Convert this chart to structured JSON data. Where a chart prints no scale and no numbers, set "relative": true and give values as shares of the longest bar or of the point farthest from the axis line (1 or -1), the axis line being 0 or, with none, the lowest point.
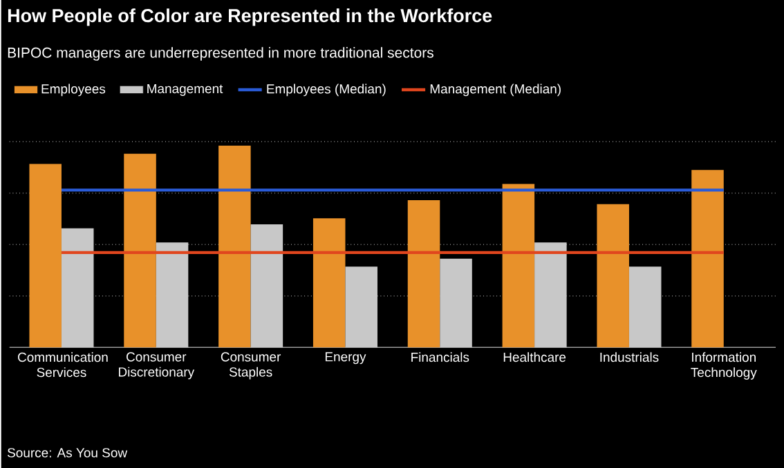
{
  "chart_data": {
    "type": "bar",
    "title": "How People of Color are Represented in the Workforce",
    "subtitle": "BIPOC managers are underrepresented in more traditional sectors",
    "categories": [
      "Communication Services",
      "Consumer Discretionary",
      "Consumer Staples",
      "Energy",
      "Financials",
      "Healthcare",
      "Industrials",
      "Information Technology"
    ],
    "relative": true,
    "grid": "y",
    "legend": "top left",
    "series": [
      {
        "name": "Employees",
        "color": "#e8912a",
        "values": [
          0.91,
          0.96,
          1,
          0.64,
          0.73,
          0.81,
          0.71,
          0.88
        ]
      },
      {
        "name": "Management",
        "color": "#c8c8c8",
        "values": [
          0.59,
          0.52,
          0.61,
          0.4,
          0.44,
          0.52,
          0.4,
          null
        ]
      },
      {
        "name": "Employees (Median)",
        "type": "line",
        "color": "#2a5bd7",
        "values": [
          0.78,
          0.78,
          0.78,
          0.78,
          0.78,
          0.78,
          0.78,
          0.78
        ]
      },
      {
        "name": "Management (Median)",
        "type": "line",
        "color": "#e0461e",
        "values": [
          0.47,
          0.47,
          0.47,
          0.47,
          0.47,
          0.47,
          0.47,
          0.47
        ]
      }
    ],
    "annotations": [
      "Source: As You Sow"
    ]
  }
}
